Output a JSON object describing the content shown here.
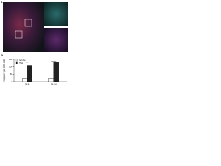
{
  "panel_labels": [
    "A",
    "B"
  ],
  "chart_data": {
    "type": "bar",
    "ylabel": "Frequency per 1000 cells",
    "categories": [
      "NK1",
      "NKM"
    ],
    "series": [
      {
        "name": "Vehicle",
        "color": "#ffffff",
        "values": [
          20,
          22
        ]
      },
      {
        "name": "PTH",
        "color": "#222222",
        "values": [
          110,
          130
        ]
      }
    ],
    "annotations": [
      "***",
      "***"
    ],
    "ylim": [
      0,
      150
    ],
    "yticks": [
      0,
      50,
      100,
      150
    ],
    "legend": "top-left"
  }
}
